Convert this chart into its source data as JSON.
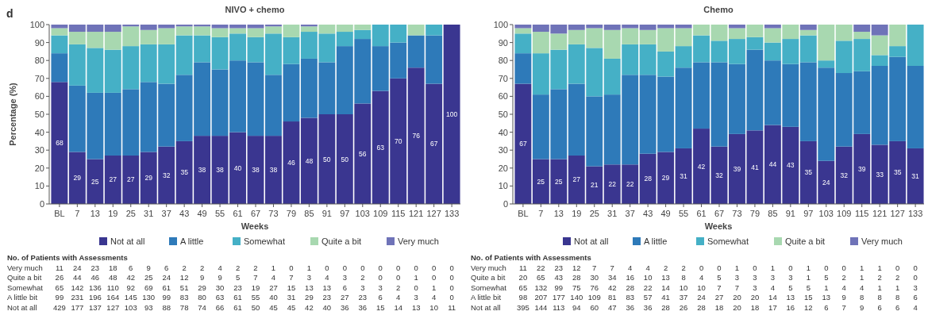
{
  "chart_data": [
    {
      "type": "bar",
      "stacked": true,
      "title": "NIVO + chemo",
      "xlabel": "Weeks",
      "ylabel": "Percentage (%)",
      "categories": [
        "BL",
        "7",
        "13",
        "19",
        "25",
        "31",
        "37",
        "43",
        "49",
        "55",
        "61",
        "67",
        "73",
        "79",
        "85",
        "91",
        "97",
        "103",
        "109",
        "115",
        "121",
        "127",
        "133"
      ],
      "ylim": [
        0,
        100
      ],
      "yticks": [
        0,
        10,
        20,
        30,
        40,
        50,
        60,
        70,
        80,
        90,
        100
      ],
      "legend": "bottom",
      "series": [
        {
          "name": "Not at all",
          "color": "#3a3690",
          "values": [
            68,
            29,
            25,
            27,
            27,
            29,
            32,
            35,
            38,
            38,
            40,
            38,
            38,
            46,
            48,
            50,
            50,
            56,
            63,
            70,
            76,
            67,
            100
          ],
          "value_labels": [
            "68",
            "29",
            "25",
            "27",
            "27",
            "29",
            "32",
            "35",
            "38",
            "38",
            "40",
            "38",
            "38",
            "46",
            "48",
            "50",
            "50",
            "56",
            "63",
            "70",
            "76",
            "67",
            "100"
          ]
        },
        {
          "name": "A little",
          "color": "#2e7ab9",
          "values": [
            16,
            37,
            37,
            35,
            37,
            39,
            35,
            37,
            41,
            37,
            40,
            41,
            34,
            32,
            33,
            29,
            38,
            36,
            25,
            20,
            18,
            27,
            0
          ]
        },
        {
          "name": "Somewhat",
          "color": "#45b0c6",
          "values": [
            10,
            23,
            25,
            24,
            24,
            21,
            22,
            22,
            15,
            18,
            15,
            14,
            23,
            15,
            15,
            16,
            8,
            5,
            12,
            10,
            0,
            6,
            0
          ]
        },
        {
          "name": "Quite a bit",
          "color": "#a8d8b0",
          "values": [
            4,
            7,
            9,
            10,
            11,
            8,
            9,
            5,
            5,
            5,
            3,
            5,
            4,
            7,
            3,
            5,
            4,
            3,
            0,
            0,
            6,
            0,
            0
          ]
        },
        {
          "name": "Very much",
          "color": "#6f73b8",
          "values": [
            2,
            4,
            4,
            4,
            1,
            3,
            2,
            1,
            1,
            2,
            2,
            2,
            1,
            0,
            1,
            0,
            0,
            0,
            0,
            0,
            0,
            0,
            0
          ]
        }
      ],
      "annotations": [
        "d",
        "No. of Patients with Assessments",
        "Very much\t11\t24\t23\t18\t6\t9\t6\t2\t2\t4\t2\t2\t1\t0\t1\t0\t0\t0\t0\t0\t0\t0\t0",
        "Quite a bit\t26\t44\t46\t48\t42\t25\t24\t12\t9\t9\t5\t7\t4\t7\t3\t4\t3\t2\t0\t0\t1\t0\t0",
        "Somewhat\t65\t142\t136\t110\t92\t69\t61\t51\t29\t30\t23\t19\t27\t15\t13\t13\t6\t3\t3\t2\t0\t1\t0",
        "A little bit\t99\t231\t196\t164\t145\t130\t99\t83\t80\t63\t61\t55\t40\t31\t29\t23\t27\t23\t6\t4\t3\t4\t0",
        "Not at all\t429\t177\t137\t127\t103\t93\t88\t78\t74\t66\t61\t50\t45\t45\t42\t40\t36\t36\t15\t14\t13\t10\t11"
      ]
    },
    {
      "type": "bar",
      "stacked": true,
      "title": "Chemo",
      "xlabel": "Weeks",
      "categories": [
        "BL",
        "7",
        "13",
        "19",
        "25",
        "31",
        "37",
        "43",
        "49",
        "55",
        "61",
        "67",
        "73",
        "79",
        "85",
        "91",
        "97",
        "103",
        "109",
        "115",
        "121",
        "127",
        "133"
      ],
      "ylim": [
        0,
        100
      ],
      "yticks": [
        0,
        10,
        20,
        30,
        40,
        50,
        60,
        70,
        80,
        90,
        100
      ],
      "legend": "bottom",
      "series": [
        {
          "name": "Not at all",
          "color": "#3a3690",
          "values": [
            67,
            25,
            25,
            27,
            21,
            22,
            22,
            28,
            29,
            31,
            42,
            32,
            39,
            41,
            44,
            43,
            35,
            24,
            32,
            39,
            33,
            35,
            31
          ],
          "value_labels": [
            "67",
            "25",
            "25",
            "27",
            "21",
            "22",
            "22",
            "28",
            "29",
            "31",
            "42",
            "32",
            "39",
            "41",
            "44",
            "43",
            "35",
            "24",
            "32",
            "39",
            "33",
            "35",
            "31"
          ]
        },
        {
          "name": "A little",
          "color": "#2e7ab9",
          "values": [
            17,
            36,
            39,
            40,
            39,
            39,
            50,
            44,
            42,
            45,
            37,
            47,
            39,
            45,
            36,
            35,
            44,
            52,
            41,
            35,
            44,
            47,
            46
          ]
        },
        {
          "name": "Somewhat",
          "color": "#45b0c6",
          "values": [
            11,
            23,
            22,
            22,
            27,
            20,
            17,
            17,
            14,
            12,
            15,
            12,
            14,
            7,
            10,
            14,
            15,
            4,
            18,
            18,
            6,
            6,
            23
          ]
        },
        {
          "name": "Quite a bit",
          "color": "#a8d8b0",
          "values": [
            3,
            12,
            9,
            8,
            11,
            16,
            9,
            8,
            13,
            10,
            6,
            9,
            6,
            7,
            8,
            8,
            3,
            20,
            9,
            4,
            11,
            12,
            0
          ]
        },
        {
          "name": "Very much",
          "color": "#6f73b8",
          "values": [
            2,
            4,
            5,
            3,
            2,
            3,
            2,
            3,
            2,
            2,
            0,
            0,
            2,
            0,
            2,
            0,
            3,
            0,
            0,
            4,
            6,
            0,
            0
          ]
        }
      ],
      "annotations": [
        "No. of Patients with Assessments",
        "Very much\t11\t22\t23\t12\t7\t7\t4\t4\t2\t2\t0\t0\t1\t0\t1\t0\t1\t0\t0\t1\t1\t0\t0",
        "Quite a bit\t20\t65\t43\t28\t30\t34\t16\t10\t13\t8\t4\t5\t3\t3\t3\t3\t1\t5\t2\t1\t2\t2\t0",
        "Somewhat\t65\t132\t99\t75\t76\t42\t28\t22\t14\t10\t10\t7\t7\t3\t4\t5\t5\t1\t4\t4\t1\t1\t3",
        "A little bit\t98\t207\t177\t140\t109\t81\t83\t57\t41\t37\t24\t27\t20\t20\t14\t13\t15\t13\t9\t8\t8\t8\t6",
        "Not at all\t395\t144\t113\t94\t60\t47\t36\t36\t28\t26\t28\t18\t20\t18\t17\t16\t12\t6\t7\t9\t6\t6\t4"
      ]
    }
  ]
}
